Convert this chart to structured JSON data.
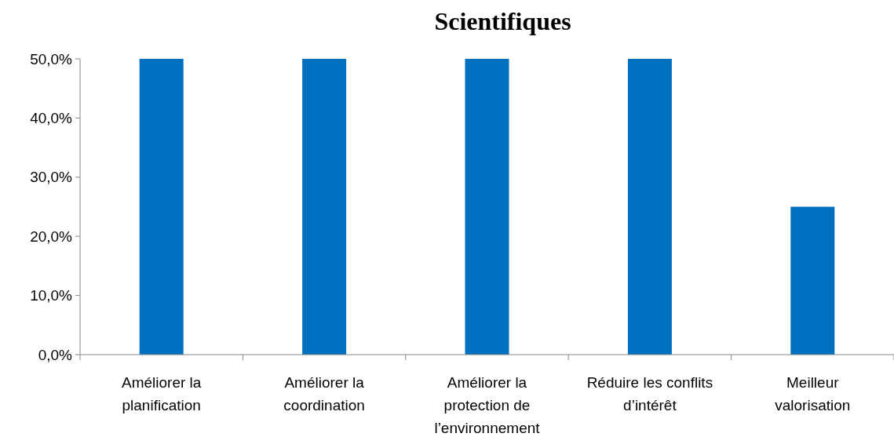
{
  "chart_data": {
    "type": "bar",
    "title": "Scientifiques",
    "categories": [
      "Améliorer la planification",
      "Améliorer la coordination",
      "Améliorer la protection de l’environnement",
      "Réduire les conflits d’intérêt",
      "Meilleur valorisation"
    ],
    "values": [
      50,
      50,
      50,
      50,
      25
    ],
    "color": "#0070c0",
    "ylim": [
      0,
      50
    ],
    "yticks": [
      {
        "value": 0,
        "label": "0,0%"
      },
      {
        "value": 10,
        "label": "10,0%"
      },
      {
        "value": 20,
        "label": "20,0%"
      },
      {
        "value": 30,
        "label": "30,0%"
      },
      {
        "value": 40,
        "label": "40,0%"
      },
      {
        "value": 50,
        "label": "50,0%"
      }
    ],
    "grid": false
  }
}
